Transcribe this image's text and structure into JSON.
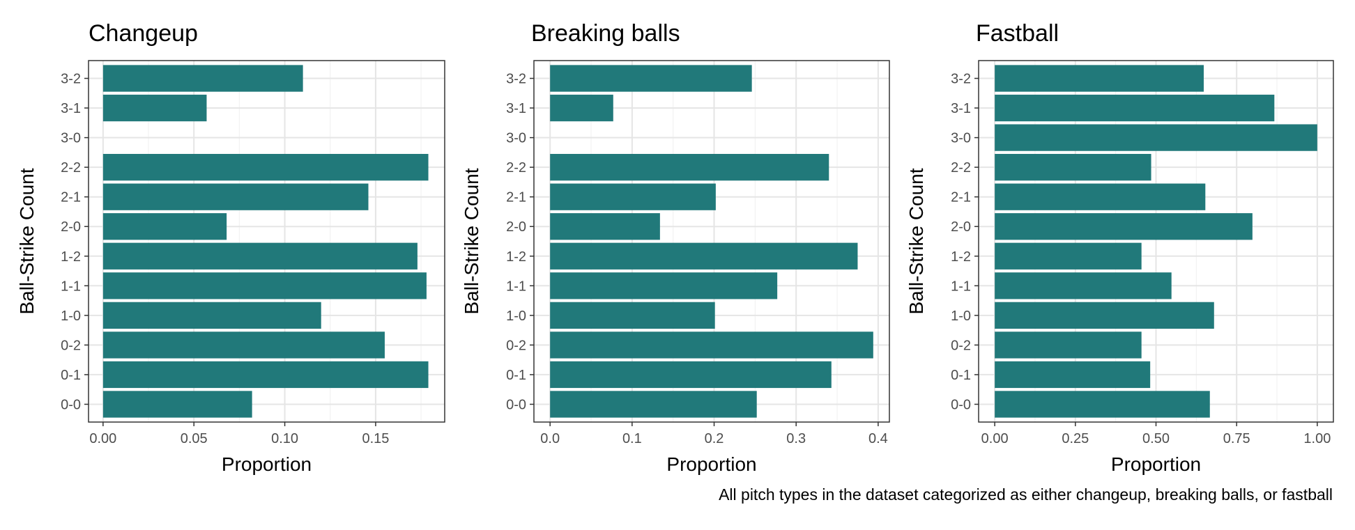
{
  "caption": "All pitch types in the dataset categorized as either changeup, breaking balls, or fastball",
  "colors": {
    "bar": "#21797A",
    "grid_major": "#E5E5E5",
    "grid_minor": "#F2F2F2",
    "panel_border": "#333333",
    "text": "#000000",
    "tick_text": "#4D4D4D"
  },
  "chart_data": [
    {
      "type": "bar",
      "orientation": "horizontal",
      "title": "Changeup",
      "xlabel": "Proportion",
      "ylabel": "Ball-Strike Count",
      "categories": [
        "0-0",
        "0-1",
        "0-2",
        "1-0",
        "1-1",
        "1-2",
        "2-0",
        "2-1",
        "2-2",
        "3-0",
        "3-1",
        "3-2"
      ],
      "values": [
        0.082,
        0.179,
        0.155,
        0.12,
        0.178,
        0.173,
        0.068,
        0.146,
        0.179,
        null,
        0.057,
        0.11
      ],
      "xlim": [
        -0.008,
        0.188
      ],
      "xticks": [
        0,
        0.05,
        0.1,
        0.15
      ],
      "xtick_labels": [
        "0.00",
        "0.05",
        "0.10",
        "0.15"
      ],
      "grid": true,
      "legend": "none"
    },
    {
      "type": "bar",
      "orientation": "horizontal",
      "title": "Breaking balls",
      "xlabel": "Proportion",
      "ylabel": "Ball-Strike Count",
      "categories": [
        "0-0",
        "0-1",
        "0-2",
        "1-0",
        "1-1",
        "1-2",
        "2-0",
        "2-1",
        "2-2",
        "3-0",
        "3-1",
        "3-2"
      ],
      "values": [
        0.252,
        0.343,
        0.394,
        0.201,
        0.277,
        0.375,
        0.134,
        0.202,
        0.34,
        null,
        0.077,
        0.246
      ],
      "xlim": [
        -0.0197,
        0.4137
      ],
      "xticks": [
        0,
        0.1,
        0.2,
        0.3,
        0.4
      ],
      "xtick_labels": [
        "0.0",
        "0.1",
        "0.2",
        "0.3",
        "0.4"
      ],
      "grid": true,
      "legend": "none"
    },
    {
      "type": "bar",
      "orientation": "horizontal",
      "title": "Fastball",
      "xlabel": "Proportion",
      "ylabel": "Ball-Strike Count",
      "categories": [
        "0-0",
        "0-1",
        "0-2",
        "1-0",
        "1-1",
        "1-2",
        "2-0",
        "2-1",
        "2-2",
        "3-0",
        "3-1",
        "3-2"
      ],
      "values": [
        0.667,
        0.482,
        0.455,
        0.68,
        0.548,
        0.455,
        0.799,
        0.653,
        0.485,
        1.0,
        0.867,
        0.648
      ],
      "xlim": [
        -0.05,
        1.05
      ],
      "xticks": [
        0,
        0.25,
        0.5,
        0.75,
        1.0
      ],
      "xtick_labels": [
        "0.00",
        "0.25",
        "0.50",
        "0.75",
        "1.00"
      ],
      "grid": true,
      "legend": "none"
    }
  ]
}
